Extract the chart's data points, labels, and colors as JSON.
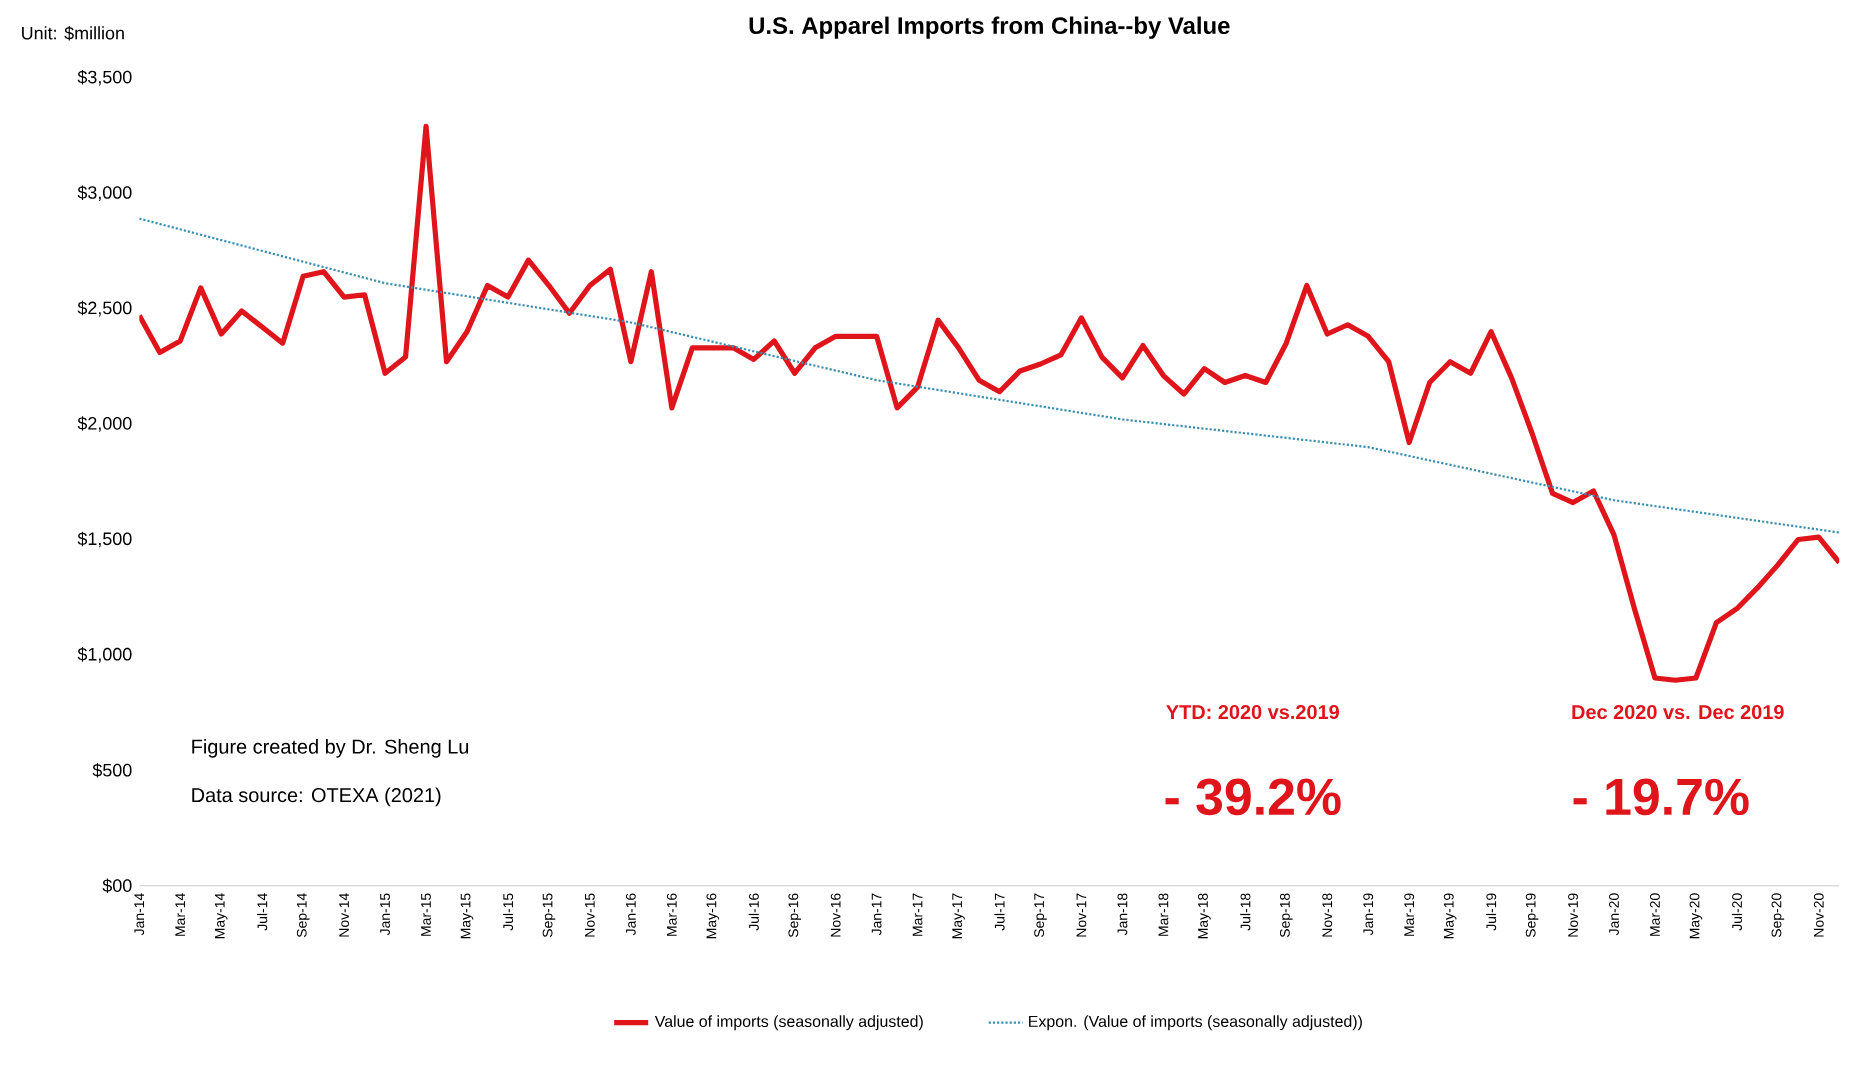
{
  "chart_data": {
    "type": "line",
    "title": "U.S. Apparel Imports from China--by Value",
    "categories": [
      "Jan-14",
      null,
      "Mar-14",
      null,
      "May-14",
      null,
      "Jul-14",
      null,
      "Sep-14",
      null,
      "Nov-14",
      null,
      "Jan-15",
      null,
      "Mar-15",
      null,
      "May-15",
      null,
      "Jul-15",
      null,
      "Sep-15",
      null,
      "Nov-15",
      null,
      "Jan-16",
      null,
      "Mar-16",
      null,
      "May-16",
      null,
      "Jul-16",
      null,
      "Sep-16",
      null,
      "Nov-16",
      null,
      "Jan-17",
      null,
      "Mar-17",
      null,
      "May-17",
      null,
      "Jul-17",
      null,
      "Sep-17",
      null,
      "Nov-17",
      null,
      "Jan-18",
      null,
      "Mar-18",
      null,
      "May-18",
      null,
      "Jul-18",
      null,
      "Sep-18",
      null,
      "Nov-18",
      null,
      "Jan-19",
      null,
      "Mar-19",
      null,
      "May-19",
      null,
      "Jul-19",
      null,
      "Sep-19",
      null,
      "Nov-19",
      null,
      "Jan-20",
      null,
      "Mar-20",
      null,
      "May-20",
      null,
      "Jul-20",
      null,
      "Sep-20",
      null,
      "Nov-20",
      null
    ],
    "series": [
      {
        "name": "Value of imports (seasonally adjusted)",
        "color": "#e0141b",
        "line_style": "solid",
        "values": [
          2470,
          2310,
          2360,
          2590,
          2390,
          2490,
          2420,
          2350,
          2640,
          2660,
          2550,
          2560,
          2220,
          2290,
          3290,
          2270,
          2400,
          2600,
          2550,
          2710,
          2600,
          2480,
          2600,
          2670,
          2270,
          2660,
          2070,
          2330,
          2330,
          2330,
          2280,
          2360,
          2220,
          2330,
          2380,
          2380,
          2380,
          2070,
          2160,
          2450,
          2330,
          2190,
          2140,
          2230,
          2260,
          2300,
          2460,
          2290,
          2200,
          2340,
          2210,
          2130,
          2240,
          2180,
          2210,
          2180,
          2350,
          2600,
          2390,
          2430,
          2380,
          2270,
          1920,
          2180,
          2270,
          2220,
          2400,
          2200,
          1960,
          1700,
          1660,
          1710,
          1520,
          1200,
          900,
          890,
          900,
          1140,
          1200,
          1290,
          1390,
          1500,
          1510,
          1400
        ]
      },
      {
        "name": "Expon. (Value of imports (seasonally adjusted))",
        "color": "#3a8fb0",
        "line_style": "dotted",
        "values": [
          2890,
          null,
          null,
          null,
          null,
          null,
          null,
          null,
          null,
          null,
          null,
          null,
          2610,
          null,
          null,
          null,
          null,
          null,
          null,
          null,
          null,
          null,
          null,
          null,
          2440,
          null,
          null,
          null,
          null,
          null,
          null,
          null,
          null,
          null,
          null,
          null,
          2190,
          null,
          null,
          null,
          null,
          null,
          null,
          null,
          null,
          null,
          null,
          null,
          2020,
          null,
          null,
          null,
          null,
          null,
          null,
          null,
          null,
          null,
          null,
          null,
          1900,
          null,
          null,
          null,
          null,
          null,
          null,
          null,
          null,
          null,
          null,
          null,
          1670,
          null,
          null,
          null,
          null,
          null,
          null,
          null,
          null,
          null,
          null,
          1530
        ]
      }
    ],
    "ylim": [
      0,
      3500
    ],
    "yticks": [
      {
        "value": 0,
        "label": "$00"
      },
      {
        "value": 500,
        "label": "$500"
      },
      {
        "value": 1000,
        "label": "$1,000"
      },
      {
        "value": 1500,
        "label": "$1,500"
      },
      {
        "value": 2000,
        "label": "$2,000"
      },
      {
        "value": 2500,
        "label": "$2,500"
      },
      {
        "value": 3000,
        "label": "$3,000"
      },
      {
        "value": 3500,
        "label": "$3,500"
      }
    ],
    "grid": false,
    "legend": "bottom",
    "marker": "none",
    "annotations": [
      "Unit: $million",
      "Figure created by Dr. Sheng Lu",
      "Data source: OTEXA (2021)",
      "YTD: 2020  vs.2019",
      "- 39.2%",
      "Dec 2020 vs. Dec 2019",
      "- 19.7%"
    ]
  }
}
